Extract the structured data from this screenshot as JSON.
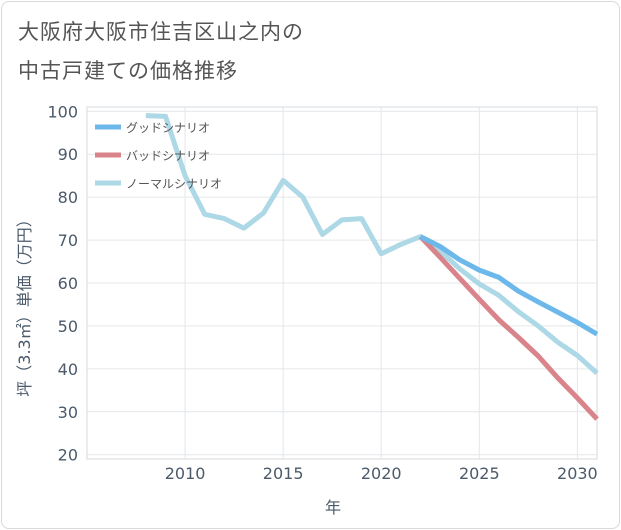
{
  "title_line1": "大阪府大阪市住吉区山之内の",
  "title_line2": "中古戸建ての価格推移",
  "chart_data": {
    "type": "line",
    "xlabel": "年",
    "ylabel": "坪（3.3㎡）単価（万円）",
    "xlim": [
      2005,
      2031
    ],
    "ylim": [
      19,
      101
    ],
    "xticks": [
      2010,
      2015,
      2020,
      2025,
      2030
    ],
    "yticks": [
      20,
      30,
      40,
      50,
      60,
      70,
      80,
      90,
      100
    ],
    "grid": true,
    "legend_position": "top-left",
    "series": [
      {
        "name": "グッドシナリオ",
        "color": "#6db8ea",
        "x": [
          2022,
          2023,
          2024,
          2025,
          2026,
          2027,
          2028,
          2029,
          2030,
          2031
        ],
        "values": [
          70.8,
          68.5,
          65.4,
          63.0,
          61.3,
          58.1,
          55.6,
          53.2,
          50.8,
          48.1
        ]
      },
      {
        "name": "バッドシナリオ",
        "color": "#d9838b",
        "x": [
          2022,
          2023,
          2024,
          2025,
          2026,
          2027,
          2028,
          2029,
          2030,
          2031
        ],
        "values": [
          70.8,
          66.0,
          61.1,
          56.2,
          51.4,
          47.3,
          43.0,
          37.9,
          33.2,
          28.3
        ]
      },
      {
        "name": "ノーマルシナリオ",
        "color": "#add8e6",
        "x": [
          2008,
          2009,
          2010,
          2011,
          2012,
          2013,
          2014,
          2015,
          2016,
          2017,
          2018,
          2019,
          2020,
          2021,
          2022,
          2023,
          2024,
          2025,
          2026,
          2027,
          2028,
          2029,
          2030,
          2031
        ],
        "values": [
          99.0,
          98.8,
          85.0,
          76.0,
          75.0,
          72.8,
          76.3,
          83.9,
          80.0,
          71.3,
          74.7,
          75.0,
          66.8,
          69.0,
          70.8,
          67.5,
          63.3,
          59.8,
          57.1,
          53.3,
          50.0,
          46.2,
          43.1,
          39.0
        ]
      }
    ]
  }
}
